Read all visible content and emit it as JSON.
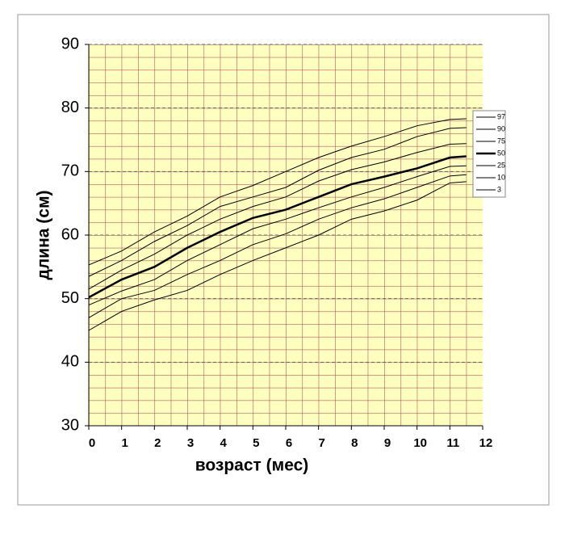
{
  "chart_data": {
    "type": "line",
    "xlabel": "возраст (мес)",
    "ylabel": "длина (см)",
    "x": [
      0,
      1,
      2,
      3,
      4,
      5,
      6,
      7,
      8,
      9,
      10,
      11,
      11.5
    ],
    "series": [
      {
        "name": "97",
        "color": "#000000",
        "line_width": 1,
        "values": [
          55.3,
          57.5,
          60.5,
          63,
          66,
          67.8,
          70,
          72.2,
          74,
          75.5,
          77.2,
          78.2,
          78.3
        ]
      },
      {
        "name": "90",
        "color": "#000000",
        "line_width": 1,
        "values": [
          53.5,
          56,
          59,
          61.5,
          64.5,
          66,
          67.5,
          70.2,
          72.2,
          73.5,
          75.5,
          76.8,
          76.9
        ]
      },
      {
        "name": "75",
        "color": "#000000",
        "line_width": 1,
        "values": [
          51.5,
          54.5,
          57,
          60,
          62.5,
          64.5,
          66,
          68.5,
          70.3,
          71.5,
          73,
          74.3,
          74.4
        ]
      },
      {
        "name": "50",
        "color": "#000000",
        "line_width": 2.5,
        "values": [
          50.2,
          53,
          55,
          58,
          60.5,
          62.7,
          64,
          66,
          68,
          69.2,
          70.5,
          72.2,
          72.4
        ]
      },
      {
        "name": "25",
        "color": "#000000",
        "line_width": 1,
        "values": [
          49,
          51.2,
          53,
          56,
          58.5,
          61,
          62.5,
          64.3,
          66,
          67.5,
          69.2,
          70.8,
          70.9
        ]
      },
      {
        "name": "10",
        "color": "#000000",
        "line_width": 1,
        "values": [
          47,
          50,
          51.3,
          53.8,
          56,
          58.5,
          60.2,
          62.5,
          64.3,
          65.7,
          67.5,
          69.3,
          69.5
        ]
      },
      {
        "name": "3",
        "color": "#000000",
        "line_width": 1,
        "values": [
          45,
          48,
          49.8,
          51.3,
          53.8,
          56,
          58,
          60,
          62.5,
          63.8,
          65.5,
          68.2,
          68.4
        ]
      }
    ],
    "xlim": [
      0,
      12
    ],
    "xticks": [
      0,
      1,
      2,
      3,
      4,
      5,
      6,
      7,
      8,
      9,
      10,
      11,
      12
    ],
    "ylim": [
      30,
      90
    ],
    "yticks": [
      30,
      40,
      50,
      60,
      70,
      80,
      90
    ],
    "grid": true,
    "plot_background": "#ffffc0",
    "minor_grid_color": "#b05a5a",
    "legend": "right"
  }
}
